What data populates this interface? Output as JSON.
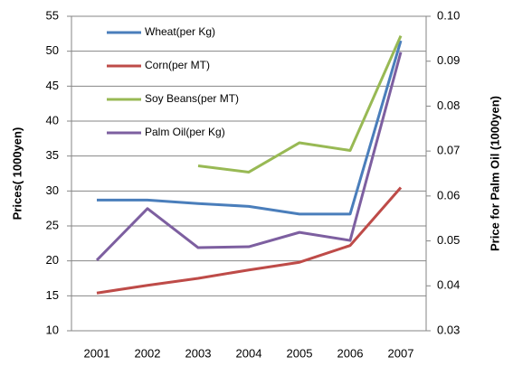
{
  "chart_data": {
    "type": "line",
    "categories": [
      "2001",
      "2002",
      "2003",
      "2004",
      "2005",
      "2006",
      "2007"
    ],
    "ylabel": "Prices( 1000yen)",
    "y2label": "Price for Palm Oil (1000yen)",
    "ylim": [
      10,
      55
    ],
    "yticks": [
      10,
      15,
      20,
      25,
      30,
      35,
      40,
      45,
      50,
      55
    ],
    "y2lim": [
      0.03,
      0.1
    ],
    "y2ticks": [
      0.03,
      0.04,
      0.05,
      0.06,
      0.07,
      0.08,
      0.09,
      {
        "value": 0.1,
        "label": "0.10"
      }
    ],
    "grid": true,
    "legend": "upper left",
    "series": [
      {
        "name": "Wheat(per Kg)",
        "color": "#4a7ebb",
        "values": [
          28.7,
          28.7,
          28.2,
          27.8,
          26.7,
          26.7,
          51.5
        ]
      },
      {
        "name": "Corn(per MT)",
        "color": "#be4b48",
        "values": [
          15.4,
          16.5,
          17.5,
          18.7,
          19.8,
          22.2,
          30.5
        ]
      },
      {
        "name": "Soy Beans(per MT)",
        "color": "#98b954",
        "values": [
          null,
          null,
          33.6,
          32.7,
          36.9,
          35.8,
          52.2
        ]
      },
      {
        "name": "Palm Oil(per Kg)",
        "color": "#7d5fa0",
        "axis": "y2",
        "values": [
          0.0457,
          0.0572,
          0.0485,
          0.0487,
          0.0519,
          0.0501,
          0.092
        ]
      }
    ]
  }
}
